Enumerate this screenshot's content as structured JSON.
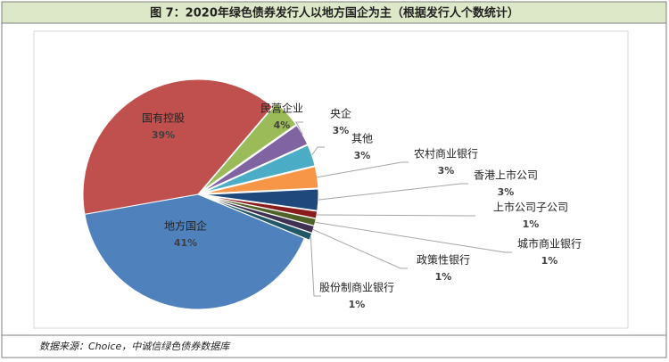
{
  "chart_data": {
    "type": "pie",
    "title": "图 7：2020年绿色债券发行人以地方国企为主（根据发行人个数统计）",
    "source": "数据来源：Choice，中诚信绿色债券数据库",
    "categories": [
      "国有控股",
      "民营企业",
      "央企",
      "其他",
      "农村商业银行",
      "香港上市公司",
      "上市公司子公司",
      "城市商业银行",
      "政策性银行",
      "股份制商业银行",
      "地方国企"
    ],
    "values": [
      39,
      4,
      3,
      3,
      3,
      3,
      1,
      1,
      1,
      1,
      41
    ],
    "value_labels": [
      "39%",
      "4%",
      "3%",
      "3%",
      "3%",
      "3%",
      "1%",
      "1%",
      "1%",
      "1%",
      "41%"
    ],
    "colors": [
      "#c0504d",
      "#9bbb59",
      "#8064a2",
      "#4bacc6",
      "#f79646",
      "#1f497d",
      "#8b1c1c",
      "#4f6228",
      "#3f3151",
      "#205867",
      "#4f81bd"
    ]
  }
}
